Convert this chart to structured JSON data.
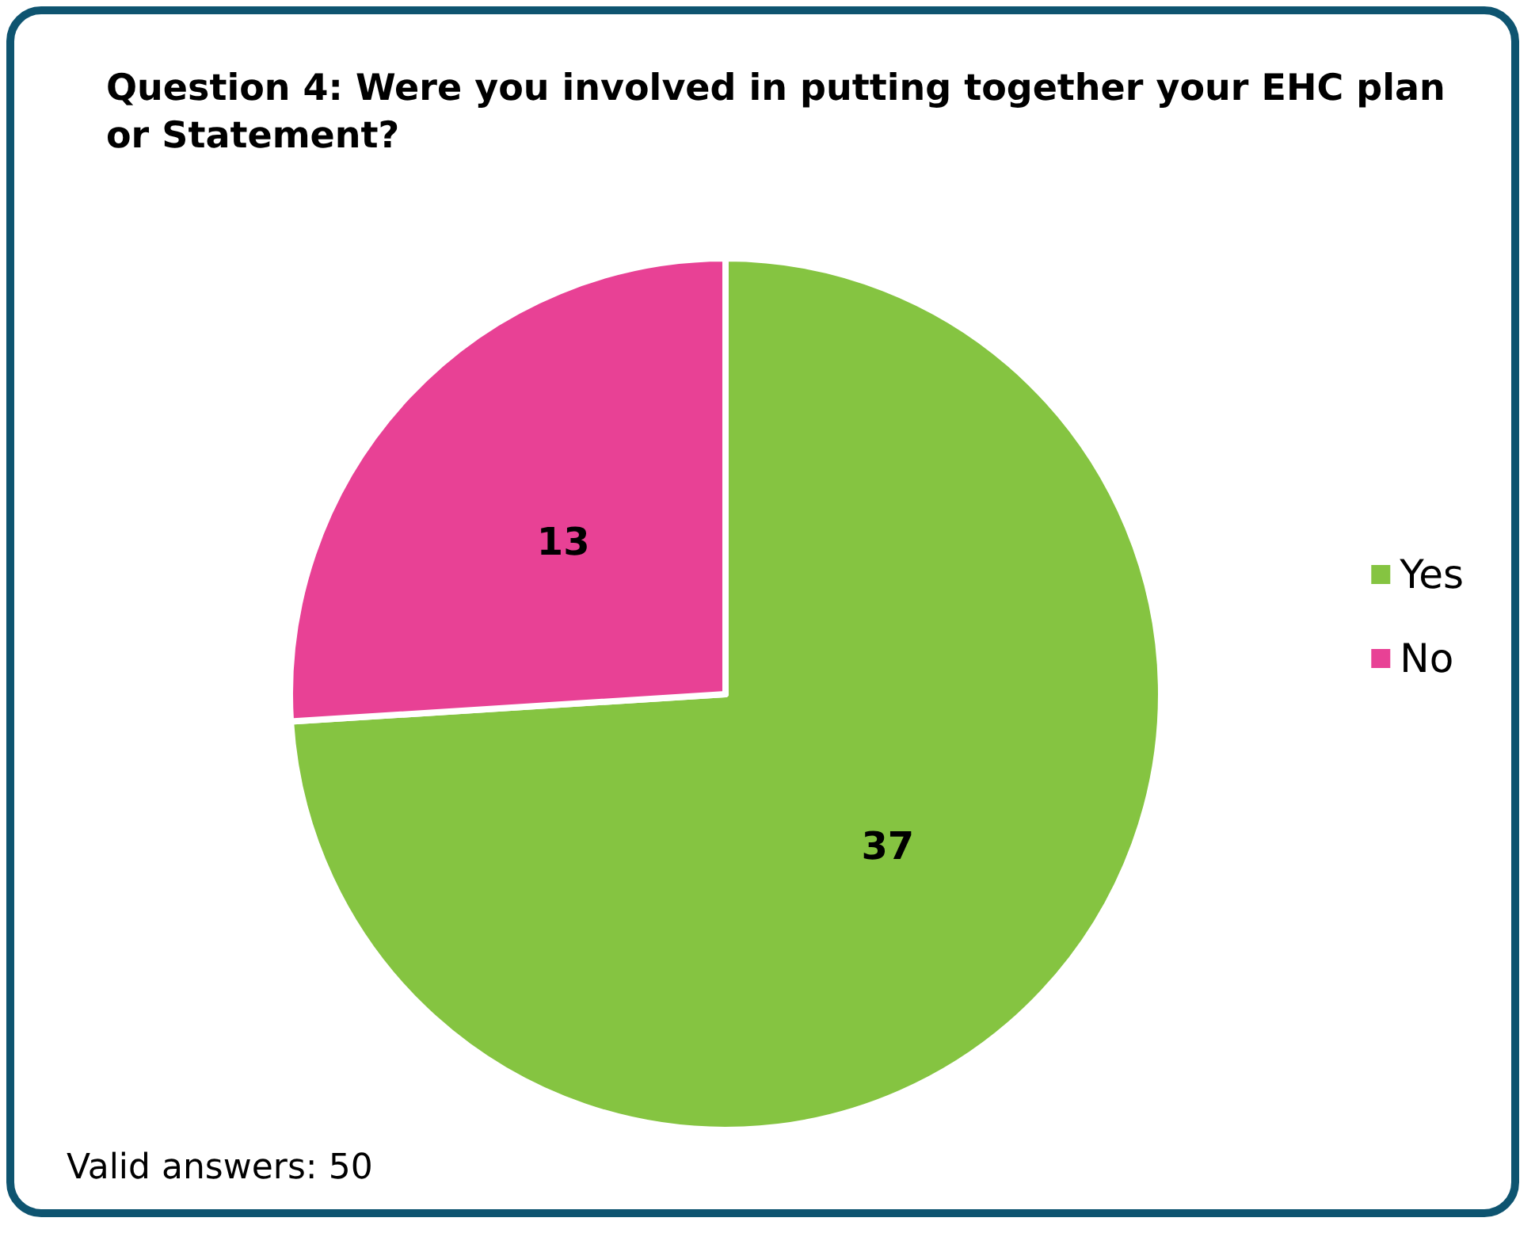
{
  "chart_data": {
    "type": "pie",
    "title": "Question 4: Were you involved in putting together your EHC plan or Statement?",
    "categories": [
      "Yes",
      "No"
    ],
    "values": [
      37,
      13
    ],
    "colors": [
      "#85c441",
      "#e84195"
    ],
    "data_labels": true,
    "legend": "right",
    "annotations": [
      "Valid answers: 50"
    ]
  }
}
